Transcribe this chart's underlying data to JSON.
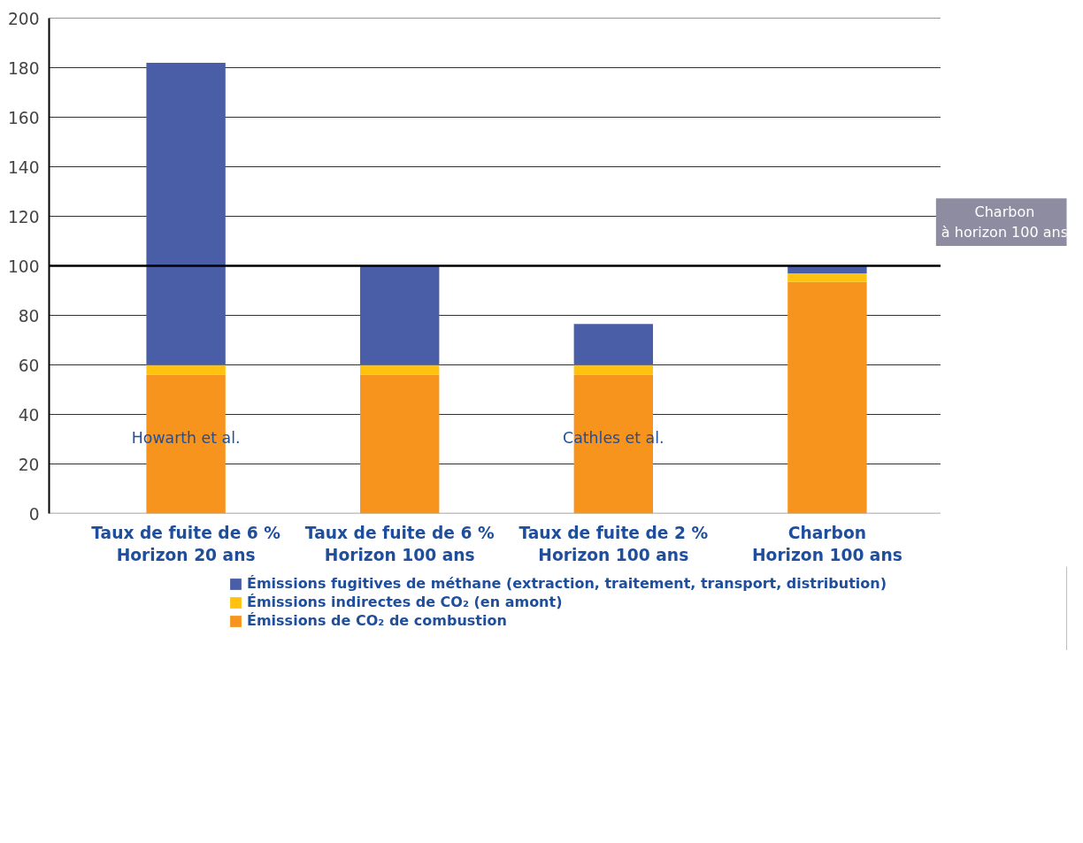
{
  "chart_data": {
    "type": "bar",
    "stacked": true,
    "categories": [
      "Taux de fuite de 6 %\nHorizon 20 ans",
      "Taux de fuite de 6 %\nHorizon 100 ans",
      "Taux de fuite de 2 %\nHorizon 100 ans",
      "Charbon\nHorizon 100 ans"
    ],
    "series": [
      {
        "name": "Émissions de CO₂ de combustion",
        "color": "#f7941d",
        "values": [
          56,
          56,
          56,
          93.5
        ]
      },
      {
        "name": "Émissions indirectes de CO₂ (en amont)",
        "color": "#ffc20e",
        "values": [
          4,
          4,
          4,
          3.5
        ]
      },
      {
        "name": "Émissions fugitives de méthane (extraction, traitement, transport, distribution)",
        "color": "#4a5ea8",
        "values": [
          122,
          40,
          16.5,
          3
        ]
      }
    ],
    "ylim": [
      0,
      200
    ],
    "yticks": [
      0,
      20,
      40,
      60,
      80,
      100,
      120,
      140,
      160,
      180,
      200
    ],
    "grid": "y",
    "legend": "bottom",
    "ref_lines": [
      {
        "axis": "y",
        "value": 100,
        "label": "Charbon\nà horizon 100 ans",
        "color": "#000000"
      }
    ],
    "annotations": [
      "Howarth et al.",
      "Cathles et al."
    ]
  }
}
